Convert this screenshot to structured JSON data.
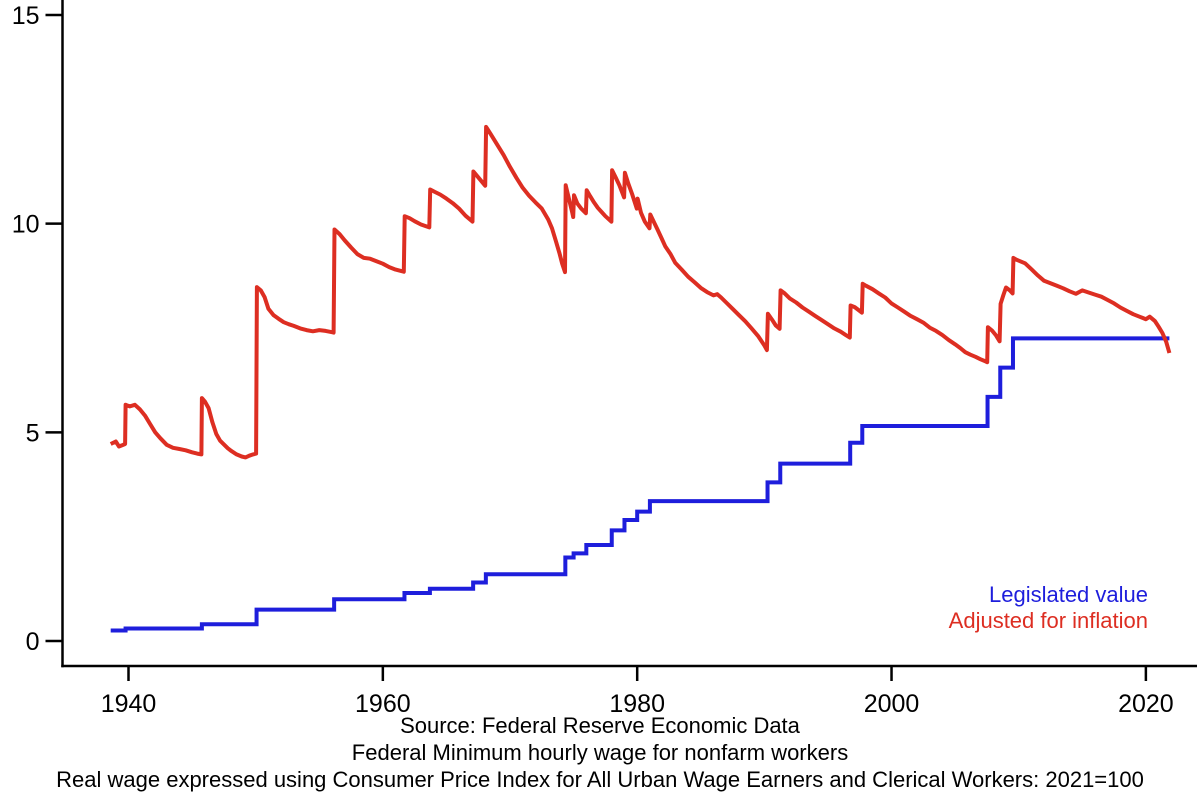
{
  "figure": {
    "background": "#ffffff",
    "text_color": "#000000"
  },
  "legend": {
    "items": [
      {
        "label": "Legislated value",
        "color": "#1e1edc"
      },
      {
        "label": "Adjusted for inflation",
        "color": "#dd2e22"
      }
    ]
  },
  "captions": {
    "line1": "Source: Federal Reserve Economic Data",
    "line2": "Federal Minimum hourly wage for nonfarm workers",
    "line3": "Real wage expressed using Consumer Price Index for All Urban Wage Earners and Clerical Workers: 2021=100"
  },
  "chart_data": {
    "type": "line",
    "title": "",
    "xlabel": "",
    "ylabel": "",
    "grid": false,
    "legend_position": "lower right",
    "x_ticks": [
      1940,
      1960,
      1980,
      2000,
      2020
    ],
    "y_ticks": [
      0,
      5,
      10,
      15
    ],
    "xlim": [
      1934.81,
      2024.02
    ],
    "ylim": [
      -0.6,
      15.36
    ],
    "series": [
      {
        "name": "Legislated value",
        "color": "#1e1edc",
        "style": "step",
        "points": [
          [
            1938.6,
            0.25
          ],
          [
            1939.77,
            0.3
          ],
          [
            1945.77,
            0.4
          ],
          [
            1950.07,
            0.75
          ],
          [
            1956.17,
            1.0
          ],
          [
            1961.7,
            1.15
          ],
          [
            1963.7,
            1.25
          ],
          [
            1967.1,
            1.4
          ],
          [
            1968.1,
            1.6
          ],
          [
            1974.35,
            2.0
          ],
          [
            1975.0,
            2.1
          ],
          [
            1976.0,
            2.3
          ],
          [
            1978.0,
            2.65
          ],
          [
            1979.0,
            2.9
          ],
          [
            1980.0,
            3.1
          ],
          [
            1981.0,
            3.35
          ],
          [
            1990.25,
            3.8
          ],
          [
            1991.25,
            4.25
          ],
          [
            1996.75,
            4.75
          ],
          [
            1997.7,
            5.15
          ],
          [
            2007.55,
            5.85
          ],
          [
            2008.55,
            6.55
          ],
          [
            2009.55,
            7.25
          ],
          [
            2021.85,
            7.25
          ]
        ]
      },
      {
        "name": "Adjusted for inflation",
        "color": "#dd2e22",
        "style": "line",
        "points": [
          [
            1938.6,
            4.72
          ],
          [
            1939.0,
            4.78
          ],
          [
            1939.25,
            4.66
          ],
          [
            1939.5,
            4.69
          ],
          [
            1939.73,
            4.72
          ],
          [
            1939.77,
            5.66
          ],
          [
            1940.1,
            5.62
          ],
          [
            1940.5,
            5.66
          ],
          [
            1940.9,
            5.55
          ],
          [
            1941.3,
            5.4
          ],
          [
            1941.7,
            5.2
          ],
          [
            1942.1,
            5.0
          ],
          [
            1942.5,
            4.86
          ],
          [
            1943.0,
            4.7
          ],
          [
            1943.5,
            4.63
          ],
          [
            1944.0,
            4.6
          ],
          [
            1944.5,
            4.57
          ],
          [
            1945.0,
            4.52
          ],
          [
            1945.4,
            4.49
          ],
          [
            1945.73,
            4.47
          ],
          [
            1945.77,
            5.82
          ],
          [
            1946.0,
            5.74
          ],
          [
            1946.3,
            5.58
          ],
          [
            1946.6,
            5.24
          ],
          [
            1946.9,
            4.96
          ],
          [
            1947.2,
            4.8
          ],
          [
            1947.5,
            4.71
          ],
          [
            1947.8,
            4.62
          ],
          [
            1948.1,
            4.55
          ],
          [
            1948.5,
            4.47
          ],
          [
            1948.9,
            4.42
          ],
          [
            1949.2,
            4.4
          ],
          [
            1949.5,
            4.44
          ],
          [
            1949.8,
            4.47
          ],
          [
            1950.03,
            4.49
          ],
          [
            1950.1,
            8.48
          ],
          [
            1950.4,
            8.4
          ],
          [
            1950.7,
            8.24
          ],
          [
            1951.0,
            7.96
          ],
          [
            1951.4,
            7.81
          ],
          [
            1951.8,
            7.72
          ],
          [
            1952.2,
            7.64
          ],
          [
            1952.6,
            7.59
          ],
          [
            1953.0,
            7.55
          ],
          [
            1953.5,
            7.49
          ],
          [
            1954.0,
            7.45
          ],
          [
            1954.5,
            7.42
          ],
          [
            1955.0,
            7.45
          ],
          [
            1955.5,
            7.43
          ],
          [
            1956.0,
            7.4
          ],
          [
            1956.13,
            7.39
          ],
          [
            1956.2,
            9.86
          ],
          [
            1956.6,
            9.75
          ],
          [
            1957.0,
            9.6
          ],
          [
            1957.5,
            9.43
          ],
          [
            1958.0,
            9.27
          ],
          [
            1958.5,
            9.18
          ],
          [
            1959.0,
            9.16
          ],
          [
            1959.5,
            9.1
          ],
          [
            1960.0,
            9.04
          ],
          [
            1960.5,
            8.96
          ],
          [
            1961.0,
            8.9
          ],
          [
            1961.65,
            8.85
          ],
          [
            1961.72,
            10.18
          ],
          [
            1962.1,
            10.13
          ],
          [
            1962.5,
            10.06
          ],
          [
            1963.0,
            9.98
          ],
          [
            1963.65,
            9.91
          ],
          [
            1963.72,
            10.82
          ],
          [
            1964.1,
            10.76
          ],
          [
            1964.5,
            10.7
          ],
          [
            1965.0,
            10.6
          ],
          [
            1965.5,
            10.49
          ],
          [
            1966.0,
            10.36
          ],
          [
            1966.5,
            10.19
          ],
          [
            1967.05,
            10.05
          ],
          [
            1967.12,
            11.25
          ],
          [
            1967.5,
            11.11
          ],
          [
            1968.05,
            10.91
          ],
          [
            1968.12,
            12.32
          ],
          [
            1968.5,
            12.14
          ],
          [
            1969.0,
            11.89
          ],
          [
            1969.5,
            11.64
          ],
          [
            1970.0,
            11.36
          ],
          [
            1970.5,
            11.1
          ],
          [
            1971.0,
            10.86
          ],
          [
            1971.5,
            10.67
          ],
          [
            1972.0,
            10.51
          ],
          [
            1972.5,
            10.36
          ],
          [
            1973.0,
            10.1
          ],
          [
            1973.3,
            9.89
          ],
          [
            1973.6,
            9.59
          ],
          [
            1973.9,
            9.28
          ],
          [
            1974.1,
            9.04
          ],
          [
            1974.32,
            8.84
          ],
          [
            1974.38,
            10.92
          ],
          [
            1974.6,
            10.64
          ],
          [
            1974.9,
            10.26
          ],
          [
            1974.97,
            10.16
          ],
          [
            1975.03,
            10.68
          ],
          [
            1975.3,
            10.48
          ],
          [
            1975.6,
            10.36
          ],
          [
            1975.97,
            10.25
          ],
          [
            1976.03,
            10.8
          ],
          [
            1976.3,
            10.66
          ],
          [
            1976.6,
            10.51
          ],
          [
            1976.9,
            10.38
          ],
          [
            1977.2,
            10.28
          ],
          [
            1977.5,
            10.18
          ],
          [
            1977.97,
            10.05
          ],
          [
            1978.03,
            11.28
          ],
          [
            1978.3,
            11.11
          ],
          [
            1978.6,
            10.92
          ],
          [
            1978.97,
            10.63
          ],
          [
            1979.03,
            11.22
          ],
          [
            1979.3,
            10.96
          ],
          [
            1979.6,
            10.71
          ],
          [
            1979.97,
            10.36
          ],
          [
            1980.03,
            10.6
          ],
          [
            1980.3,
            10.26
          ],
          [
            1980.6,
            10.05
          ],
          [
            1980.97,
            9.89
          ],
          [
            1981.03,
            10.22
          ],
          [
            1981.3,
            10.05
          ],
          [
            1981.6,
            9.86
          ],
          [
            1981.9,
            9.66
          ],
          [
            1982.2,
            9.46
          ],
          [
            1982.6,
            9.28
          ],
          [
            1983.0,
            9.06
          ],
          [
            1983.5,
            8.9
          ],
          [
            1984.0,
            8.73
          ],
          [
            1984.5,
            8.6
          ],
          [
            1985.0,
            8.46
          ],
          [
            1985.5,
            8.36
          ],
          [
            1986.0,
            8.28
          ],
          [
            1986.3,
            8.31
          ],
          [
            1986.6,
            8.23
          ],
          [
            1987.0,
            8.11
          ],
          [
            1987.5,
            7.96
          ],
          [
            1988.0,
            7.81
          ],
          [
            1988.5,
            7.66
          ],
          [
            1989.0,
            7.49
          ],
          [
            1989.5,
            7.31
          ],
          [
            1990.0,
            7.08
          ],
          [
            1990.2,
            6.97
          ],
          [
            1990.28,
            7.84
          ],
          [
            1990.6,
            7.7
          ],
          [
            1990.9,
            7.56
          ],
          [
            1991.2,
            7.48
          ],
          [
            1991.28,
            8.4
          ],
          [
            1991.6,
            8.33
          ],
          [
            1992.0,
            8.21
          ],
          [
            1992.5,
            8.11
          ],
          [
            1993.0,
            7.99
          ],
          [
            1993.5,
            7.89
          ],
          [
            1994.0,
            7.79
          ],
          [
            1994.5,
            7.69
          ],
          [
            1995.0,
            7.59
          ],
          [
            1995.5,
            7.49
          ],
          [
            1996.0,
            7.41
          ],
          [
            1996.4,
            7.33
          ],
          [
            1996.72,
            7.27
          ],
          [
            1996.78,
            8.04
          ],
          [
            1997.1,
            8.0
          ],
          [
            1997.4,
            7.93
          ],
          [
            1997.67,
            7.87
          ],
          [
            1997.73,
            8.56
          ],
          [
            1998.0,
            8.51
          ],
          [
            1998.5,
            8.43
          ],
          [
            1999.0,
            8.33
          ],
          [
            1999.5,
            8.23
          ],
          [
            2000.0,
            8.09
          ],
          [
            2000.5,
            7.99
          ],
          [
            2001.0,
            7.89
          ],
          [
            2001.5,
            7.79
          ],
          [
            2002.0,
            7.71
          ],
          [
            2002.5,
            7.63
          ],
          [
            2003.0,
            7.51
          ],
          [
            2003.5,
            7.43
          ],
          [
            2004.0,
            7.33
          ],
          [
            2004.5,
            7.21
          ],
          [
            2005.0,
            7.11
          ],
          [
            2005.4,
            7.02
          ],
          [
            2005.8,
            6.92
          ],
          [
            2006.2,
            6.86
          ],
          [
            2006.6,
            6.81
          ],
          [
            2007.0,
            6.75
          ],
          [
            2007.4,
            6.7
          ],
          [
            2007.52,
            6.68
          ],
          [
            2007.58,
            7.52
          ],
          [
            2007.9,
            7.44
          ],
          [
            2008.2,
            7.33
          ],
          [
            2008.5,
            7.18
          ],
          [
            2008.58,
            8.08
          ],
          [
            2008.8,
            8.29
          ],
          [
            2009.0,
            8.47
          ],
          [
            2009.3,
            8.4
          ],
          [
            2009.52,
            8.33
          ],
          [
            2009.58,
            9.18
          ],
          [
            2009.8,
            9.14
          ],
          [
            2010.1,
            9.1
          ],
          [
            2010.5,
            9.05
          ],
          [
            2011.0,
            8.91
          ],
          [
            2011.5,
            8.76
          ],
          [
            2012.0,
            8.63
          ],
          [
            2012.5,
            8.57
          ],
          [
            2013.0,
            8.51
          ],
          [
            2013.5,
            8.45
          ],
          [
            2014.0,
            8.38
          ],
          [
            2014.5,
            8.32
          ],
          [
            2015.0,
            8.4
          ],
          [
            2015.5,
            8.35
          ],
          [
            2016.0,
            8.3
          ],
          [
            2016.5,
            8.25
          ],
          [
            2017.0,
            8.17
          ],
          [
            2017.5,
            8.09
          ],
          [
            2018.0,
            7.99
          ],
          [
            2018.5,
            7.91
          ],
          [
            2019.0,
            7.83
          ],
          [
            2019.5,
            7.77
          ],
          [
            2020.0,
            7.71
          ],
          [
            2020.3,
            7.77
          ],
          [
            2020.7,
            7.67
          ],
          [
            2021.0,
            7.53
          ],
          [
            2021.3,
            7.38
          ],
          [
            2021.6,
            7.17
          ],
          [
            2021.85,
            6.9
          ]
        ]
      }
    ]
  }
}
